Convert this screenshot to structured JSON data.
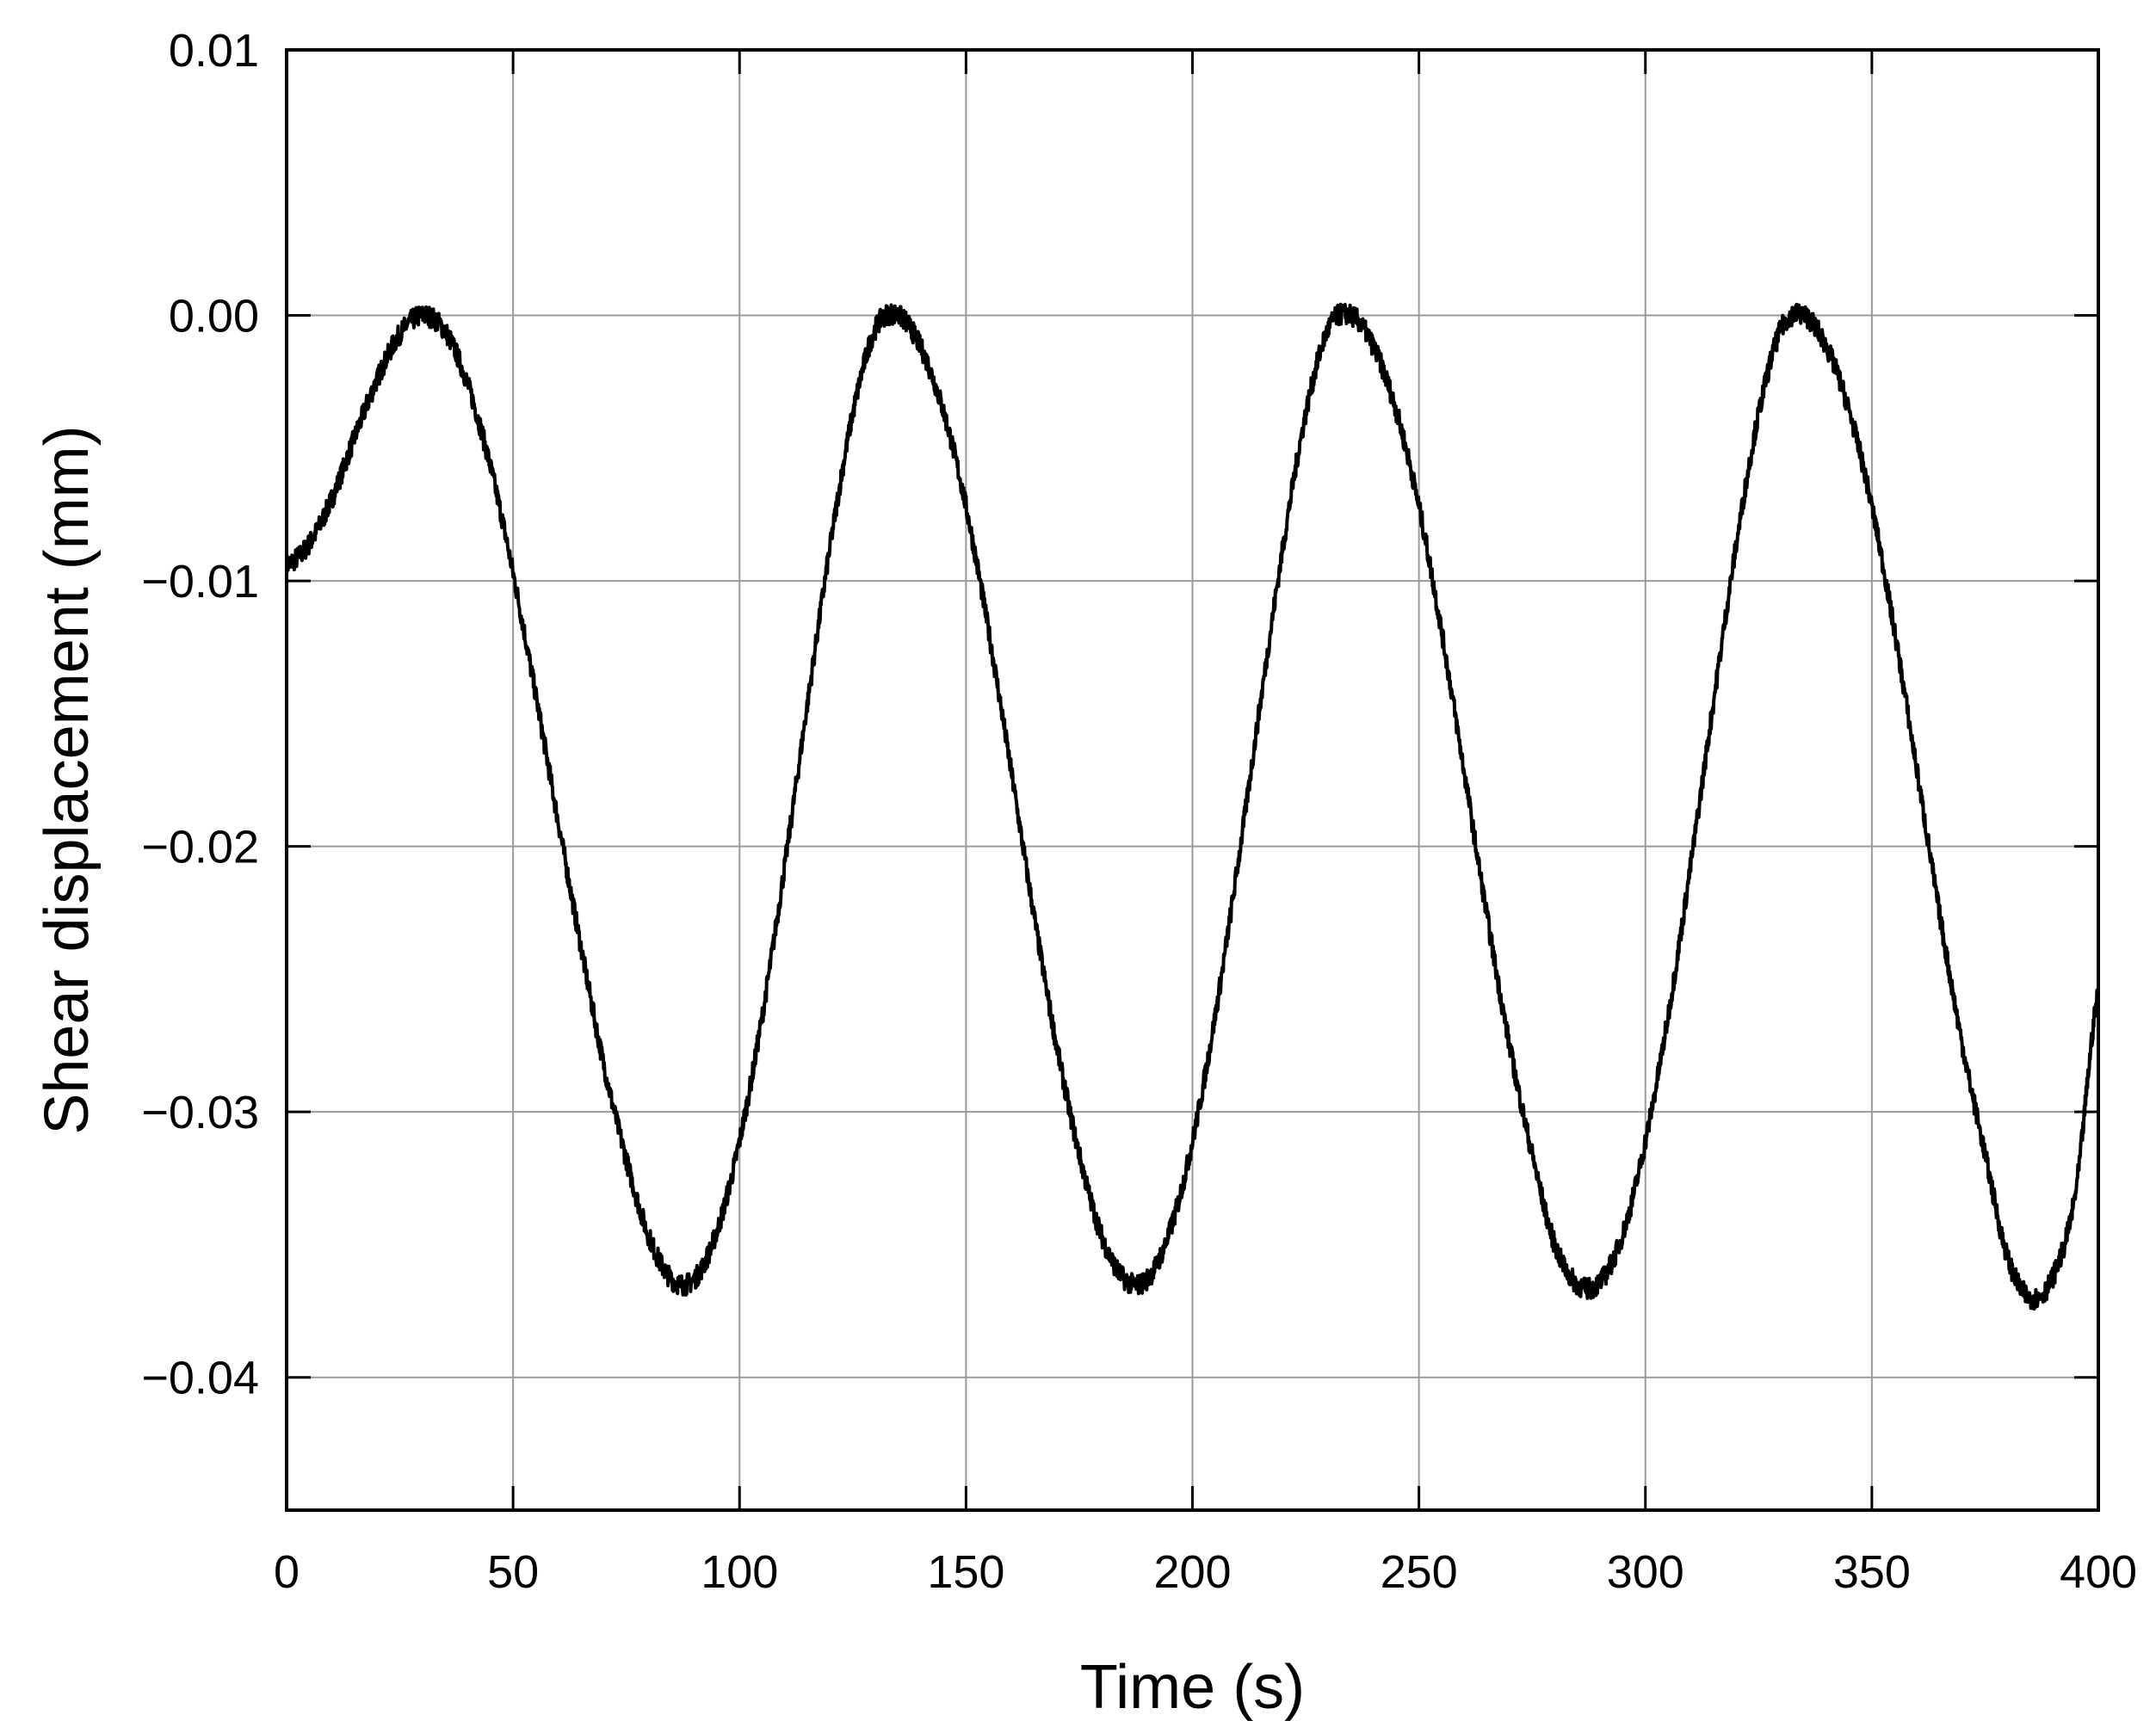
{
  "chart_data": {
    "type": "line",
    "title": "",
    "xlabel": "Time (s)",
    "ylabel": "Shear displacement (mm)",
    "xlim": [
      0,
      400
    ],
    "ylim": [
      -0.045,
      0.01
    ],
    "x_ticks": [
      0,
      50,
      100,
      150,
      200,
      250,
      300,
      350,
      400
    ],
    "x_tick_labels": [
      "0",
      "50",
      "100",
      "150",
      "200",
      "250",
      "300",
      "350",
      "400"
    ],
    "y_ticks": [
      0.01,
      0.0,
      -0.01,
      -0.02,
      -0.03,
      -0.04
    ],
    "y_tick_labels": [
      "0.01",
      "0.00",
      "−0.01",
      "−0.02",
      "−0.03",
      "−0.04"
    ],
    "grid": true,
    "legend": "none",
    "series": [
      {
        "color": "#000000",
        "x": [
          0,
          5,
          10,
          15,
          20,
          25,
          30,
          35,
          40,
          45,
          50,
          55,
          60,
          65,
          70,
          75,
          80,
          85,
          90,
          95,
          100,
          105,
          110,
          115,
          120,
          125,
          130,
          135,
          140,
          145,
          150,
          155,
          160,
          165,
          170,
          175,
          180,
          185,
          190,
          195,
          200,
          205,
          210,
          215,
          220,
          225,
          230,
          235,
          240,
          245,
          250,
          255,
          260,
          265,
          270,
          275,
          280,
          285,
          290,
          295,
          300,
          305,
          310,
          315,
          320,
          325,
          330,
          335,
          340,
          345,
          350,
          355,
          360,
          365,
          370,
          375,
          380,
          385,
          390,
          395,
          400
        ],
        "y": [
          -0.0094,
          -0.0086,
          -0.0069,
          -0.0046,
          -0.0024,
          -0.0007,
          0.0,
          -0.0006,
          -0.0026,
          -0.0057,
          -0.0097,
          -0.0143,
          -0.0191,
          -0.0238,
          -0.0282,
          -0.0318,
          -0.0347,
          -0.0363,
          -0.0363,
          -0.0345,
          -0.0311,
          -0.0264,
          -0.0207,
          -0.0146,
          -0.0087,
          -0.0037,
          -0.0005,
          0.0,
          -0.0012,
          -0.0036,
          -0.0072,
          -0.0119,
          -0.0172,
          -0.0226,
          -0.0275,
          -0.0316,
          -0.0347,
          -0.0363,
          -0.0363,
          -0.0345,
          -0.0311,
          -0.0264,
          -0.0207,
          -0.0146,
          -0.0087,
          -0.0037,
          -0.0005,
          0.0,
          -0.0012,
          -0.0036,
          -0.0072,
          -0.0119,
          -0.0172,
          -0.0226,
          -0.0275,
          -0.0316,
          -0.035,
          -0.0365,
          -0.0364,
          -0.0346,
          -0.0311,
          -0.0264,
          -0.0207,
          -0.0146,
          -0.0087,
          -0.0037,
          -0.0005,
          0.0,
          -0.0012,
          -0.0036,
          -0.0072,
          -0.0119,
          -0.0172,
          -0.0226,
          -0.0275,
          -0.0316,
          -0.0355,
          -0.037,
          -0.0362,
          -0.033,
          -0.0255
        ],
        "noise_amplitude": 0.0004
      }
    ]
  }
}
